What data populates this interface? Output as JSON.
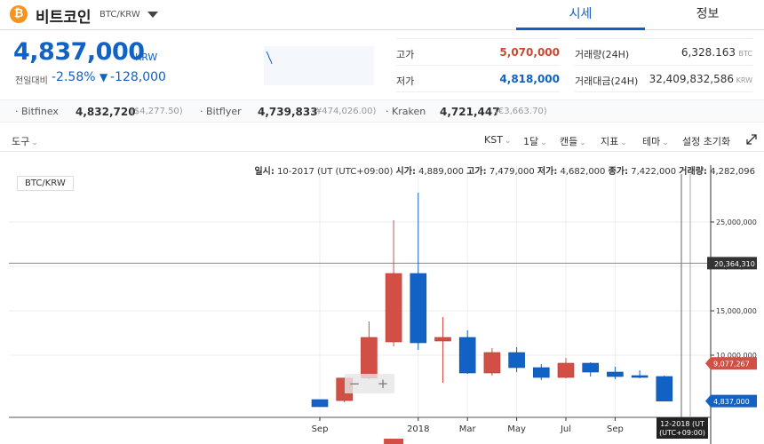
{
  "header": {
    "coin_icon": "₿",
    "coin_name": "비트코인",
    "pair": "BTC/KRW",
    "tabs": [
      "시세",
      "정보"
    ]
  },
  "summary": {
    "price": "4,837,000",
    "unit": "KRW",
    "change_label": "전일대비",
    "change_pct": "-2.58%",
    "change_arrow": "▼",
    "change_abs": "-128,000",
    "high_label": "고가",
    "high": "5,070,000",
    "low_label": "저가",
    "low": "4,818,000",
    "volume_label": "거래량(24H)",
    "volume": "6,328.163",
    "volume_unit": "BTC",
    "amount_label": "거래대금(24H)",
    "amount": "32,409,832,586",
    "amount_unit": "KRW"
  },
  "exchanges": [
    {
      "name": "Bitfinex",
      "value": "4,832,720",
      "conv": "($4,277.50)"
    },
    {
      "name": "Bitflyer",
      "value": "4,739,833",
      "conv": "(¥474,026.00)"
    },
    {
      "name": "Kraken",
      "value": "4,721,447",
      "conv": "(€3,663.70)"
    }
  ],
  "toolbar": {
    "tools": "도구",
    "timezone": "KST",
    "interval": "1달",
    "chart_type": "캔들",
    "indicator": "지표",
    "theme": "테마",
    "reset": "설정 초기화"
  },
  "info_line": {
    "date_label": "일시:",
    "date": "10-2017 (UT (UTC+09:00)",
    "open_label": "시가:",
    "open": "4,889,000",
    "high_label": "고가:",
    "high": "7,479,000",
    "low_label": "저가:",
    "low": "4,682,000",
    "close_label": "종가:",
    "close": "7,422,000",
    "vol_label": "거래량:",
    "vol": "4,282,096"
  },
  "pair_badge": "BTC/KRW",
  "colors": {
    "up": "#d24f45",
    "down": "#1261c4",
    "accent": "#115dcb"
  },
  "chart_data": {
    "type": "candlestick",
    "y_ticks": [
      25000000,
      20000000,
      15000000,
      10000000
    ],
    "y_tick_labels": [
      "25,000,000",
      "20,000,000",
      "15,000,000",
      "10,000,000"
    ],
    "ylim": [
      3000000,
      30000000
    ],
    "x_labels": [
      "Sep",
      "2018",
      "Mar",
      "May",
      "Jul",
      "Sep"
    ],
    "x_label_months": [
      0,
      4,
      6,
      8,
      10,
      12
    ],
    "candles": [
      {
        "m": 0,
        "o": 5000000,
        "h": 5000000,
        "l": 4200000,
        "c": 4200000
      },
      {
        "m": 1,
        "o": 4889000,
        "h": 7479000,
        "l": 4682000,
        "c": 7422000
      },
      {
        "m": 2,
        "o": 7422000,
        "h": 13800000,
        "l": 7300000,
        "c": 12000000
      },
      {
        "m": 3,
        "o": 11500000,
        "h": 25200000,
        "l": 11000000,
        "c": 19200000
      },
      {
        "m": 4,
        "o": 19200000,
        "h": 28300000,
        "l": 10600000,
        "c": 11400000
      },
      {
        "m": 5,
        "o": 11600000,
        "h": 14300000,
        "l": 6900000,
        "c": 12000000
      },
      {
        "m": 6,
        "o": 12000000,
        "h": 12800000,
        "l": 7900000,
        "c": 8000000
      },
      {
        "m": 7,
        "o": 8000000,
        "h": 10800000,
        "l": 7700000,
        "c": 10300000
      },
      {
        "m": 8,
        "o": 10300000,
        "h": 10900000,
        "l": 8100000,
        "c": 8600000
      },
      {
        "m": 9,
        "o": 8600000,
        "h": 9000000,
        "l": 7200000,
        "c": 7500000
      },
      {
        "m": 10,
        "o": 7500000,
        "h": 9700000,
        "l": 7400000,
        "c": 9100000
      },
      {
        "m": 11,
        "o": 9100000,
        "h": 9200000,
        "l": 7600000,
        "c": 8100000
      },
      {
        "m": 12,
        "o": 8100000,
        "h": 8700000,
        "l": 7300000,
        "c": 7600000
      },
      {
        "m": 13,
        "o": 7700000,
        "h": 8300000,
        "l": 7400000,
        "c": 7500000
      },
      {
        "m": 14,
        "o": 7600000,
        "h": 7700000,
        "l": 4800000,
        "c": 4837000
      }
    ],
    "crosshair_value": "20,364,310",
    "crosshair_price": 20364310,
    "price_tags": [
      {
        "label": "9,077,267",
        "value": 9077267,
        "color": "#d24f45"
      },
      {
        "label": "4,837,000",
        "value": 4837000,
        "color": "#1261c4"
      }
    ],
    "crosshair_time": [
      "12-2018 (UT",
      "(UTC+09:00)"
    ]
  }
}
